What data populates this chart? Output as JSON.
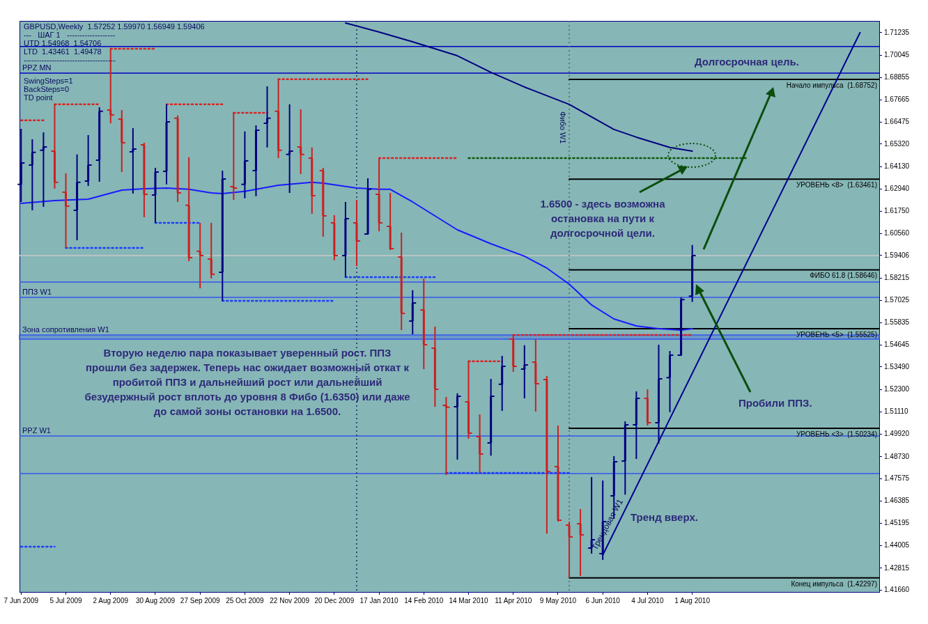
{
  "chart_data": {
    "type": "candlestick",
    "title": "GBPUSD,Weekly  1.57252 1.59970 1.56949 1.59406",
    "x": [
      "2009-06-07",
      "2009-06-14",
      "2009-06-21",
      "2009-06-28",
      "2009-07-05",
      "2009-07-12",
      "2009-07-19",
      "2009-07-26",
      "2009-08-02",
      "2009-08-09",
      "2009-08-16",
      "2009-08-23",
      "2009-08-30",
      "2009-09-06",
      "2009-09-13",
      "2009-09-20",
      "2009-09-27",
      "2009-10-04",
      "2009-10-11",
      "2009-10-18",
      "2009-10-25",
      "2009-11-01",
      "2009-11-08",
      "2009-11-15",
      "2009-11-22",
      "2009-11-29",
      "2009-12-06",
      "2009-12-13",
      "2009-12-20",
      "2009-12-27",
      "2010-01-03",
      "2010-01-10",
      "2010-01-17",
      "2010-01-24",
      "2010-01-31",
      "2010-02-07",
      "2010-02-14",
      "2010-02-21",
      "2010-02-28",
      "2010-03-07",
      "2010-03-14",
      "2010-03-21",
      "2010-03-28",
      "2010-04-04",
      "2010-04-11",
      "2010-04-18",
      "2010-04-25",
      "2010-05-02",
      "2010-05-09",
      "2010-05-16",
      "2010-05-23",
      "2010-05-30",
      "2010-06-06",
      "2010-06-13",
      "2010-06-20",
      "2010-06-27",
      "2010-07-04",
      "2010-07-11",
      "2010-07-18",
      "2010-07-25",
      "2010-08-01"
    ],
    "ohlc": [
      [
        1.6318,
        1.6613,
        1.6225,
        1.6432
      ],
      [
        1.6421,
        1.6558,
        1.6181,
        1.6488
      ],
      [
        1.6499,
        1.6595,
        1.6199,
        1.6517
      ],
      [
        1.6495,
        1.6743,
        1.6295,
        1.6329
      ],
      [
        1.6277,
        1.6377,
        1.5981,
        1.6203
      ],
      [
        1.6181,
        1.6477,
        1.6022,
        1.6329
      ],
      [
        1.6336,
        1.658,
        1.631,
        1.6421
      ],
      [
        1.6447,
        1.6728,
        1.6332,
        1.6706
      ],
      [
        1.6713,
        1.7038,
        1.6643,
        1.6687
      ],
      [
        1.6665,
        1.6713,
        1.6384,
        1.6539
      ],
      [
        1.6491,
        1.6617,
        1.6269,
        1.6506
      ],
      [
        1.6528,
        1.6539,
        1.6144,
        1.6266
      ],
      [
        1.6262,
        1.6406,
        1.6114,
        1.6384
      ],
      [
        1.6388,
        1.6743,
        1.6318,
        1.665
      ],
      [
        1.6669,
        1.6684,
        1.6225,
        1.6273
      ],
      [
        1.6207,
        1.6462,
        1.5911,
        1.5929
      ],
      [
        1.5963,
        1.6114,
        1.5767,
        1.594
      ],
      [
        1.5922,
        1.6114,
        1.5818,
        1.5841
      ],
      [
        1.5852,
        1.6391,
        1.57,
        1.6347
      ],
      [
        1.6306,
        1.6698,
        1.6236,
        1.6299
      ],
      [
        1.6318,
        1.6599,
        1.6244,
        1.6443
      ],
      [
        1.6391,
        1.6632,
        1.6255,
        1.6606
      ],
      [
        1.6643,
        1.6839,
        1.6514,
        1.6669
      ],
      [
        1.6706,
        1.6876,
        1.6458,
        1.6499
      ],
      [
        1.6477,
        1.6743,
        1.6273,
        1.6495
      ],
      [
        1.6517,
        1.6717,
        1.6373,
        1.6477
      ],
      [
        1.6458,
        1.6514,
        1.6162,
        1.6258
      ],
      [
        1.6391,
        1.6406,
        1.604,
        1.6151
      ],
      [
        1.6114,
        1.6155,
        1.5915,
        1.594
      ],
      [
        1.594,
        1.6225,
        1.5826,
        1.6136
      ],
      [
        1.6114,
        1.6236,
        1.5885,
        1.6018
      ],
      [
        1.6055,
        1.6351,
        1.6051,
        1.6292
      ],
      [
        1.6266,
        1.6458,
        1.607,
        1.6114
      ],
      [
        1.6096,
        1.6273,
        1.597,
        1.5977
      ],
      [
        1.5933,
        1.6062,
        1.5545,
        1.5634
      ],
      [
        1.5593,
        1.5756,
        1.5523,
        1.5689
      ],
      [
        1.5652,
        1.5818,
        1.5338,
        1.5467
      ],
      [
        1.5449,
        1.5563,
        1.5138,
        1.5231
      ],
      [
        1.5146,
        1.519,
        1.4776,
        1.5135
      ],
      [
        1.5138,
        1.5209,
        1.4857,
        1.5194
      ],
      [
        1.5164,
        1.5379,
        1.4968,
        1.4998
      ],
      [
        1.4979,
        1.5098,
        1.4787,
        1.4887
      ],
      [
        1.4946,
        1.5286,
        1.4879,
        1.5194
      ],
      [
        1.5257,
        1.5408,
        1.5116,
        1.5353
      ],
      [
        1.5497,
        1.5519,
        1.5323,
        1.5353
      ],
      [
        1.5338,
        1.5464,
        1.5183,
        1.536
      ],
      [
        1.5375,
        1.5497,
        1.5112,
        1.526
      ],
      [
        1.5282,
        1.5301,
        1.4465,
        1.4794
      ],
      [
        1.482,
        1.5038,
        1.4528,
        1.4536
      ],
      [
        1.451,
        1.4528,
        1.423,
        1.4447
      ],
      [
        1.4517,
        1.4595,
        1.424,
        1.4458
      ],
      [
        1.4388,
        1.4765,
        1.4358,
        1.4432
      ],
      [
        1.4358,
        1.4746,
        1.4325,
        1.4528
      ],
      [
        1.4665,
        1.4876,
        1.4543,
        1.4846
      ],
      [
        1.485,
        1.5061,
        1.4672,
        1.5042
      ],
      [
        1.5042,
        1.522,
        1.4861,
        1.5183
      ],
      [
        1.5183,
        1.5231,
        1.5038,
        1.5053
      ],
      [
        1.5053,
        1.5467,
        1.4942,
        1.5286
      ],
      [
        1.5293,
        1.5434,
        1.5109,
        1.5412
      ],
      [
        1.5412,
        1.5719,
        1.5408,
        1.5707
      ],
      [
        1.57252,
        1.5997,
        1.56949,
        1.59406
      ]
    ],
    "colors": [
      "#000080",
      "#000080",
      "#000080",
      "#cc2020",
      "#cc2020",
      "#000080",
      "#000080",
      "#000080",
      "#cc2020",
      "#cc2020",
      "#000080",
      "#cc2020",
      "#000080",
      "#000080",
      "#cc2020",
      "#cc2020",
      "#cc2020",
      "#cc2020",
      "#000080",
      "#cc2020",
      "#000080",
      "#000080",
      "#000080",
      "#cc2020",
      "#000080",
      "#cc2020",
      "#cc2020",
      "#cc2020",
      "#cc2020",
      "#000080",
      "#cc2020",
      "#000080",
      "#cc2020",
      "#cc2020",
      "#cc2020",
      "#000080",
      "#cc2020",
      "#cc2020",
      "#cc2020",
      "#000080",
      "#cc2020",
      "#cc2020",
      "#000080",
      "#000080",
      "#cc2020",
      "#000080",
      "#cc2020",
      "#cc2020",
      "#cc2020",
      "#cc2020",
      "#cc2020",
      "#000080",
      "#000080",
      "#000080",
      "#000080",
      "#000080",
      "#cc2020",
      "#000080",
      "#000080",
      "#000080",
      "#000080"
    ],
    "series": [
      {
        "type": "line",
        "color": "#1a1aff",
        "x": [
          "2009-06-07",
          "2009-06-28",
          "2009-07-19",
          "2009-08-09",
          "2009-08-23",
          "2009-09-06",
          "2009-09-20",
          "2009-10-04",
          "2009-10-11",
          "2009-10-25",
          "2009-11-15",
          "2009-12-06",
          "2009-12-13",
          "2010-01-03",
          "2010-01-17",
          "2010-01-24",
          "2010-02-07",
          "2010-02-21",
          "2010-03-07",
          "2010-03-28",
          "2010-04-18",
          "2010-05-02",
          "2010-05-16",
          "2010-05-30",
          "2010-06-13",
          "2010-06-27",
          "2010-07-11",
          "2010-07-25",
          "2010-08-01"
        ],
        "values": [
          1.6218,
          1.6232,
          1.624,
          1.6288,
          1.6295,
          1.6299,
          1.6292,
          1.6273,
          1.6269,
          1.6281,
          1.6314,
          1.6329,
          1.6325,
          1.6299,
          1.6292,
          1.6292,
          1.6225,
          1.6151,
          1.6077,
          1.6003,
          1.5937,
          1.5874,
          1.5789,
          1.5678,
          1.5604,
          1.5567,
          1.5552,
          1.5545,
          1.5552
        ]
      },
      {
        "type": "line",
        "color": "#000080",
        "x": [
          "2009-12-27",
          "2010-01-17",
          "2010-02-07",
          "2010-02-21",
          "2010-03-07",
          "2010-03-28",
          "2010-04-18",
          "2010-05-16",
          "2010-05-30",
          "2010-06-13",
          "2010-06-27",
          "2010-07-18",
          "2010-08-01"
        ],
        "values": [
          1.7175,
          1.7127,
          1.7075,
          1.7038,
          1.7001,
          1.6913,
          1.6835,
          1.6743,
          1.6676,
          1.661,
          1.6569,
          1.6514,
          1.6495
        ]
      },
      {
        "type": "line",
        "color": "#000090",
        "x": [
          "2010-06-06",
          "2010-11-14"
        ],
        "values": [
          1.4351,
          1.7124
        ]
      },
      {
        "type": "line",
        "name": "Начало импульса  (1.68752)",
        "color": "#000000",
        "x": [
          "2010-05-16",
          "2010-11-26"
        ],
        "values": [
          1.68752,
          1.68752
        ]
      },
      {
        "type": "line",
        "name": "УРОВЕНЬ <8>  (1.63461)",
        "color": "#000000",
        "x": [
          "2010-05-16",
          "2010-11-26"
        ],
        "values": [
          1.63461,
          1.63461
        ]
      },
      {
        "type": "line",
        "name": "ФИБО 61.8 (1.58646)",
        "color": "#000000",
        "x": [
          "2010-05-16",
          "2010-11-26"
        ],
        "values": [
          1.58646,
          1.58646
        ]
      },
      {
        "type": "line",
        "name": "УРОВЕНЬ <5>  (1.55525)",
        "color": "#000000",
        "x": [
          "2010-05-16",
          "2010-11-26"
        ],
        "values": [
          1.55525,
          1.55525
        ]
      },
      {
        "type": "line",
        "name": "УРОВЕНЬ <3>  (1.50234)",
        "color": "#000000",
        "x": [
          "2010-05-16",
          "2010-11-26"
        ],
        "values": [
          1.50234,
          1.50234
        ]
      },
      {
        "type": "line",
        "name": "Конец импульса  (1.42297)",
        "color": "#000000",
        "x": [
          "2010-05-16",
          "2010-11-26"
        ],
        "values": [
          1.42297,
          1.42297
        ]
      },
      {
        "type": "line",
        "line_style": "dotted",
        "color": "#dd2020",
        "x": [
          "2009-06-07",
          "2009-06-21"
        ],
        "values": [
          1.6658,
          1.6658
        ]
      },
      {
        "type": "line",
        "line_style": "dotted",
        "color": "#dd2020",
        "x": [
          "2009-06-28",
          "2009-07-26"
        ],
        "values": [
          1.6743,
          1.6743
        ]
      },
      {
        "type": "line",
        "line_style": "dotted",
        "color": "#dd2020",
        "x": [
          "2009-09-06",
          "2009-10-11"
        ],
        "values": [
          1.6743,
          1.6743
        ]
      },
      {
        "type": "line",
        "line_style": "dotted",
        "color": "#dd2020",
        "x": [
          "2009-08-02",
          "2009-08-30"
        ],
        "values": [
          1.7038,
          1.7038
        ]
      },
      {
        "type": "line",
        "line_style": "dotted",
        "color": "#dd2020",
        "x": [
          "2009-10-18",
          "2009-11-08"
        ],
        "values": [
          1.6698,
          1.6698
        ]
      },
      {
        "type": "line",
        "line_style": "dotted",
        "color": "#dd2020",
        "x": [
          "2009-11-15",
          "2010-01-10"
        ],
        "values": [
          1.6876,
          1.6876
        ]
      },
      {
        "type": "line",
        "line_style": "dotted",
        "color": "#dd2020",
        "x": [
          "2010-01-17",
          "2010-03-07"
        ],
        "values": [
          1.6458,
          1.6458
        ]
      },
      {
        "type": "line",
        "line_style": "dotted",
        "color": "#0a5a0a",
        "x": [
          "2010-03-14",
          "2010-09-05"
        ],
        "values": [
          1.6458,
          1.6458
        ]
      },
      {
        "type": "line",
        "line_style": "dotted",
        "color": "#dd2020",
        "x": [
          "2010-03-14",
          "2010-04-04"
        ],
        "values": [
          1.5379,
          1.5379
        ]
      },
      {
        "type": "line",
        "line_style": "dotted",
        "color": "#dd2020",
        "x": [
          "2010-04-11",
          "2010-08-01"
        ],
        "values": [
          1.5519,
          1.5519
        ]
      },
      {
        "type": "line",
        "line_style": "dotted",
        "color": "#1a3cff",
        "x": [
          "2009-07-05",
          "2009-08-23"
        ],
        "values": [
          1.5981,
          1.5981
        ]
      },
      {
        "type": "line",
        "line_style": "dotted",
        "color": "#1a3cff",
        "x": [
          "2009-08-30",
          "2009-09-27"
        ],
        "values": [
          1.6114,
          1.6114
        ]
      },
      {
        "type": "line",
        "line_style": "dotted",
        "color": "#1a3cff",
        "x": [
          "2009-10-11",
          "2009-12-20"
        ],
        "values": [
          1.57,
          1.57
        ]
      },
      {
        "type": "line",
        "line_style": "dotted",
        "color": "#1a3cff",
        "x": [
          "2009-12-27",
          "2010-02-21"
        ],
        "values": [
          1.5826,
          1.5826
        ]
      },
      {
        "type": "line",
        "line_style": "dotted",
        "color": "#1a3cff",
        "x": [
          "2010-02-28",
          "2010-05-16"
        ],
        "values": [
          1.4787,
          1.4787
        ]
      },
      {
        "type": "line",
        "line_style": "dotted",
        "color": "#1a3cff",
        "x": [
          "2009-06-07",
          "2009-06-28"
        ],
        "values": [
          1.4395,
          1.4395
        ]
      }
    ],
    "xlim": [
      "2009-06-06",
      "2010-11-26"
    ],
    "xticks": [
      {
        "value": "2009-06-07",
        "label": "7 Jun 2009"
      },
      {
        "value": "2009-07-05",
        "label": "5 Jul 2009"
      },
      {
        "value": "2009-08-02",
        "label": "2 Aug 2009"
      },
      {
        "value": "2009-08-30",
        "label": "30 Aug 2009"
      },
      {
        "value": "2009-09-27",
        "label": "27 Sep 2009"
      },
      {
        "value": "2009-10-25",
        "label": "25 Oct 2009"
      },
      {
        "value": "2009-11-22",
        "label": "22 Nov 2009"
      },
      {
        "value": "2009-12-20",
        "label": "20 Dec 2009"
      },
      {
        "value": "2010-01-17",
        "label": "17 Jan 2010"
      },
      {
        "value": "2010-02-14",
        "label": "14 Feb 2010"
      },
      {
        "value": "2010-03-14",
        "label": "14 Mar 2010"
      },
      {
        "value": "2010-04-11",
        "label": "11 Apr 2010"
      },
      {
        "value": "2010-05-09",
        "label": "9 May 2010"
      },
      {
        "value": "2010-06-06",
        "label": "6 Jun 2010"
      },
      {
        "value": "2010-07-04",
        "label": "4 Jul 2010"
      },
      {
        "value": "2010-08-01",
        "label": "1 Aug 2010"
      }
    ],
    "ylim": [
      1.4155,
      1.7186
    ],
    "yticks": [
      1.71235,
      1.70045,
      1.68855,
      1.67665,
      1.66475,
      {
        "value": 1.6532,
        "label": "1.65320"
      },
      {
        "value": 1.6413,
        "label": "1.64130"
      },
      {
        "value": 1.6294,
        "label": "1.62940"
      },
      {
        "value": 1.6175,
        "label": "1.61750"
      },
      {
        "value": 1.6056,
        "label": "1.60560"
      },
      1.59406,
      1.58215,
      1.57025,
      1.55835,
      1.54645,
      {
        "value": 1.5349,
        "label": "1.53490"
      },
      {
        "value": 1.523,
        "label": "1.52300"
      },
      {
        "value": 1.5111,
        "label": "1.51110"
      },
      {
        "value": 1.4992,
        "label": "1.49920"
      },
      {
        "value": 1.4873,
        "label": "1.48730"
      },
      1.47575,
      1.46385,
      1.45195,
      1.44005,
      1.42815,
      {
        "value": 1.4166,
        "label": "1.41660"
      }
    ],
    "ref_lines": [
      {
        "axis": "y",
        "value": 1.705,
        "color": "#0000c0"
      },
      {
        "axis": "y",
        "value": 1.6909,
        "label": "PPZ MN",
        "color": "#0000c0"
      },
      {
        "axis": "y",
        "value": 1.59406,
        "color": "#c8c8c8"
      },
      {
        "axis": "y",
        "value": 1.58,
        "color": "#3355ee"
      },
      {
        "axis": "y",
        "value": 1.5719,
        "label": "ППЗ W1",
        "color": "#3355ee"
      },
      {
        "axis": "y",
        "value": 1.4983,
        "label": "PPZ W1",
        "color": "#3355ee"
      },
      {
        "axis": "y",
        "value": 1.4783,
        "color": "#3355ee"
      },
      {
        "axis": "x",
        "value": "2010-01-03",
        "color": "#1a2a60",
        "line_style": "dotted"
      },
      {
        "axis": "x",
        "value": "2010-05-16",
        "label": "Фибо W1",
        "color": "#556070",
        "line_style": "dotted"
      }
    ],
    "bands": [
      {
        "axis": "y",
        "from": 1.5497,
        "to": 1.5519,
        "label": "Зона сопротивления W1",
        "color": "#3355ee"
      }
    ],
    "annotations": [
      "---   ШАГ 1   -------------------",
      "UTD 1.54968  1.54706",
      "LTD  1.43461  1.49478",
      "------------------------------------",
      "SwingSteps=1",
      "BackSteps=0",
      "TD point",
      "Долгосрочная цель.",
      "1.6500 - здесь возможна\nостановка на пути к\nдолгосрочной цели.",
      "Вторую неделю пара показывает уверенный рост. ППЗ\nпрошли без задержек. Теперь нас ожидает возможный откат к\nпробитой ППЗ и дальнейший рост или дальнейший\nбезудержный рост вплоть до уровня 8 Фибо (1.6350) или даже\nдо самой зоны остановки на 1.6500.",
      "Пробили ППЗ.",
      "Тренд вверх.",
      {
        "text": "Трендовая W1",
        "x": "2010-06-13",
        "y": 1.4506
      }
    ]
  }
}
